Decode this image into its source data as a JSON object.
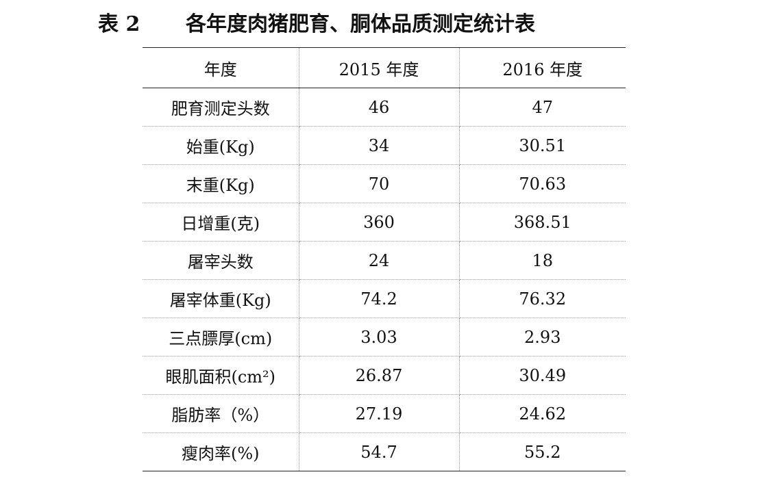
{
  "caption": {
    "label": "表 2",
    "title": "各年度肉猪肥育、胴体品质测定统计表"
  },
  "table": {
    "headers": [
      "年度",
      "2015 年度",
      "2016 年度"
    ],
    "rows": [
      [
        "肥育测定头数",
        "46",
        "47"
      ],
      [
        "始重(Kg)",
        "34",
        "30.51"
      ],
      [
        "末重(Kg)",
        "70",
        "70.63"
      ],
      [
        "日增重(克)",
        "360",
        "368.51"
      ],
      [
        "屠宰头数",
        "24",
        "18"
      ],
      [
        "屠宰体重(Kg)",
        "74.2",
        "76.32"
      ],
      [
        "三点膘厚(cm)",
        "3.03",
        "2.93"
      ],
      [
        "眼肌面积(cm²)",
        "26.87",
        "30.49"
      ],
      [
        "脂肪率（%）",
        "27.19",
        "24.62"
      ],
      [
        "瘦肉率(%)",
        "54.7",
        "55.2"
      ]
    ]
  }
}
